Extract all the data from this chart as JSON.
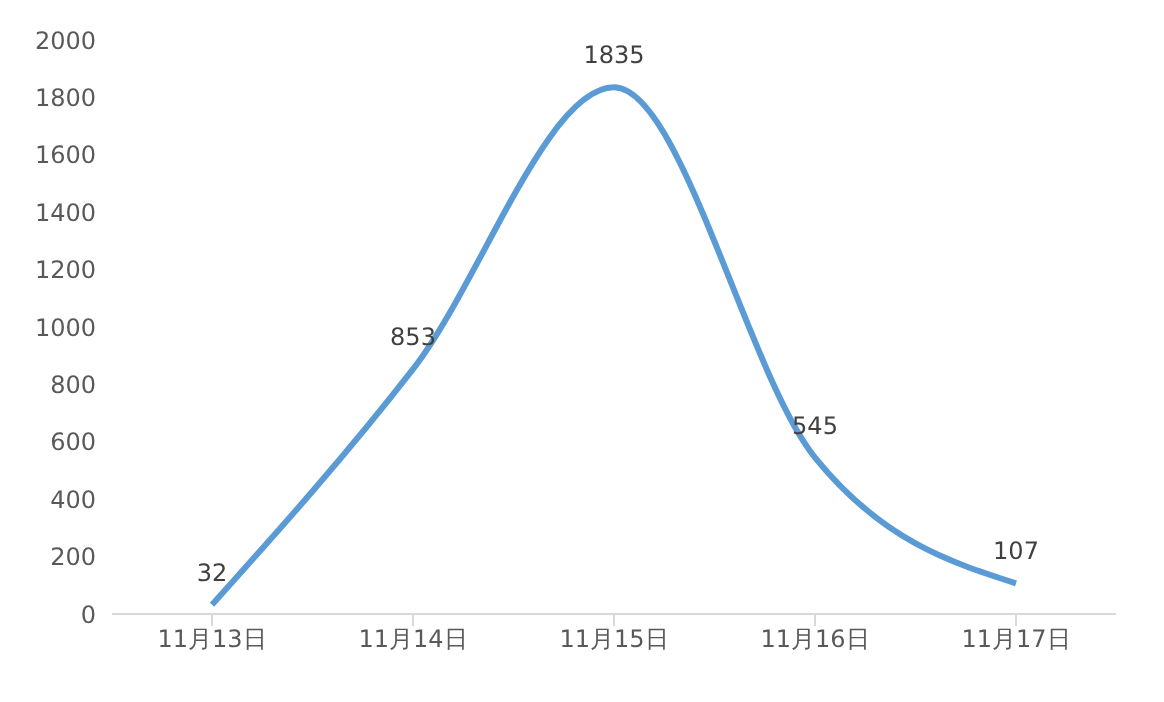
{
  "chart_data": {
    "type": "line",
    "categories": [
      "11月13日",
      "11月14日",
      "11月15日",
      "11月16日",
      "11月17日"
    ],
    "series": [
      {
        "color": "#5b9bd5",
        "values": [
          32,
          853,
          1835,
          545,
          107
        ]
      }
    ],
    "ylim": [
      0,
      2000
    ],
    "yticks": [
      0,
      200,
      400,
      600,
      800,
      1000,
      1200,
      1400,
      1600,
      1800,
      2000
    ],
    "grid": false,
    "legend": false,
    "marker": "none",
    "line_style": "solid",
    "data_labels": true
  }
}
